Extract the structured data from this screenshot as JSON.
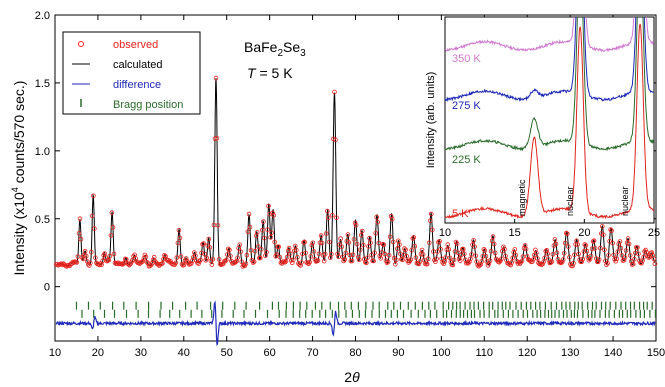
{
  "chart_data": [
    {
      "type": "scatter",
      "title": "",
      "xlabel": "2θ",
      "xlabel_parts": {
        "base": "2",
        "italic": "θ"
      },
      "ylabel": "Intensity (x10⁴ counts/570 sec.)",
      "ylabel_parts": {
        "a": "Intensity (x10",
        "sup": "4",
        "b": " counts/570 sec.)"
      },
      "xlim": [
        10,
        150
      ],
      "ylim": [
        -0.4,
        2.0
      ],
      "x_ticks": [
        10,
        20,
        30,
        40,
        50,
        60,
        70,
        80,
        90,
        100,
        110,
        120,
        130,
        140,
        150
      ],
      "y_ticks": [
        0.0,
        0.5,
        1.0,
        1.5,
        2.0
      ],
      "y_tick_labels": [
        "0",
        "0.5",
        "1.0",
        "1.5",
        "2.0"
      ],
      "background_level": 0.17,
      "difference_offset": -0.27,
      "bragg_rows_y": [
        -0.14,
        -0.2
      ],
      "legend": {
        "placement": "top-left",
        "entries": [
          {
            "label": "observed",
            "color": "#e8231e",
            "marker": "open-circle"
          },
          {
            "label": "calculated",
            "color": "#000000",
            "marker": "line"
          },
          {
            "label": "difference",
            "color": "#1f2ab8",
            "marker": "line"
          },
          {
            "label": "Bragg position",
            "color": "#2a6b2a",
            "marker": "tick"
          }
        ]
      },
      "annotations": {
        "compound": {
          "a": "BaFe",
          "s1": "2",
          "b": "Se",
          "s2": "3"
        },
        "temperature": {
          "t": "T",
          "rest": " = 5 K"
        }
      },
      "peaks": [
        {
          "x": 15.8,
          "h": 0.32
        },
        {
          "x": 17.0,
          "h": 0.08
        },
        {
          "x": 18.9,
          "h": 0.52
        },
        {
          "x": 21.5,
          "h": 0.08
        },
        {
          "x": 23.3,
          "h": 0.37
        },
        {
          "x": 26.5,
          "h": 0.06
        },
        {
          "x": 28.5,
          "h": 0.05
        },
        {
          "x": 31.0,
          "h": 0.05
        },
        {
          "x": 33.0,
          "h": 0.05
        },
        {
          "x": 35.5,
          "h": 0.06
        },
        {
          "x": 38.9,
          "h": 0.25
        },
        {
          "x": 40.5,
          "h": 0.06
        },
        {
          "x": 42.5,
          "h": 0.08
        },
        {
          "x": 44.5,
          "h": 0.14
        },
        {
          "x": 45.8,
          "h": 0.2
        },
        {
          "x": 47.5,
          "h": 1.37
        },
        {
          "x": 50.5,
          "h": 0.1
        },
        {
          "x": 53.0,
          "h": 0.14
        },
        {
          "x": 55.2,
          "h": 0.36
        },
        {
          "x": 57.0,
          "h": 0.23
        },
        {
          "x": 58.5,
          "h": 0.3
        },
        {
          "x": 59.8,
          "h": 0.45
        },
        {
          "x": 60.8,
          "h": 0.4
        },
        {
          "x": 62.0,
          "h": 0.15
        },
        {
          "x": 64.5,
          "h": 0.11
        },
        {
          "x": 66.0,
          "h": 0.12
        },
        {
          "x": 68.0,
          "h": 0.19
        },
        {
          "x": 70.0,
          "h": 0.16
        },
        {
          "x": 72.0,
          "h": 0.19
        },
        {
          "x": 73.5,
          "h": 0.4
        },
        {
          "x": 75.1,
          "h": 1.27
        },
        {
          "x": 76.5,
          "h": 0.18
        },
        {
          "x": 78.2,
          "h": 0.21
        },
        {
          "x": 80.0,
          "h": 0.31
        },
        {
          "x": 81.5,
          "h": 0.26
        },
        {
          "x": 83.3,
          "h": 0.2
        },
        {
          "x": 85.0,
          "h": 0.34
        },
        {
          "x": 86.5,
          "h": 0.15
        },
        {
          "x": 88.4,
          "h": 0.37
        },
        {
          "x": 90.0,
          "h": 0.18
        },
        {
          "x": 91.5,
          "h": 0.1
        },
        {
          "x": 93.5,
          "h": 0.19
        },
        {
          "x": 95.5,
          "h": 0.11
        },
        {
          "x": 97.6,
          "h": 0.38
        },
        {
          "x": 99.5,
          "h": 0.16
        },
        {
          "x": 101.5,
          "h": 0.13
        },
        {
          "x": 103.5,
          "h": 0.18
        },
        {
          "x": 105.0,
          "h": 0.11
        },
        {
          "x": 107.5,
          "h": 0.16
        },
        {
          "x": 110.0,
          "h": 0.11
        },
        {
          "x": 112.0,
          "h": 0.2
        },
        {
          "x": 114.5,
          "h": 0.12
        },
        {
          "x": 117.0,
          "h": 0.12
        },
        {
          "x": 119.5,
          "h": 0.14
        },
        {
          "x": 122.0,
          "h": 0.1
        },
        {
          "x": 124.5,
          "h": 0.12
        },
        {
          "x": 126.5,
          "h": 0.16
        },
        {
          "x": 129.2,
          "h": 0.23
        },
        {
          "x": 131.5,
          "h": 0.18
        },
        {
          "x": 133.5,
          "h": 0.14
        },
        {
          "x": 135.5,
          "h": 0.17
        },
        {
          "x": 137.5,
          "h": 0.28
        },
        {
          "x": 139.5,
          "h": 0.26
        },
        {
          "x": 141.5,
          "h": 0.16
        },
        {
          "x": 143.5,
          "h": 0.19
        },
        {
          "x": 145.5,
          "h": 0.13
        },
        {
          "x": 147.5,
          "h": 0.09
        },
        {
          "x": 149.0,
          "h": 0.07
        }
      ],
      "difference_glitches": [
        {
          "x": 19.0,
          "d": 0.04
        },
        {
          "x": 47.5,
          "d": -0.14
        },
        {
          "x": 75.1,
          "d": 0.08
        }
      ]
    },
    {
      "type": "line",
      "title": "",
      "xlabel": "",
      "ylabel": "Intensity (arb. units)",
      "xlim": [
        10,
        25
      ],
      "x_ticks": [
        10,
        15,
        20,
        25
      ],
      "series": [
        {
          "name": "350 K",
          "color": "#d07ad0",
          "offset": 0.86,
          "magnetic": 0.0
        },
        {
          "name": "275 K",
          "color": "#1b27b5",
          "offset": 0.62,
          "magnetic": 0.04
        },
        {
          "name": "225 K",
          "color": "#2b6b2b",
          "offset": 0.38,
          "magnetic": 0.14
        },
        {
          "name": "5 K",
          "color": "#e0241e",
          "offset": 0.05,
          "magnetic": 0.38
        }
      ],
      "peak_labels": [
        {
          "text": "magnetic",
          "x": 15.1
        },
        {
          "text": "nuclear",
          "x": 18.8
        },
        {
          "text": "nuclear",
          "x": 23.0
        }
      ],
      "peak_positions": {
        "magnetic": 16.4,
        "nuclear": [
          19.7,
          24.0
        ]
      }
    }
  ]
}
